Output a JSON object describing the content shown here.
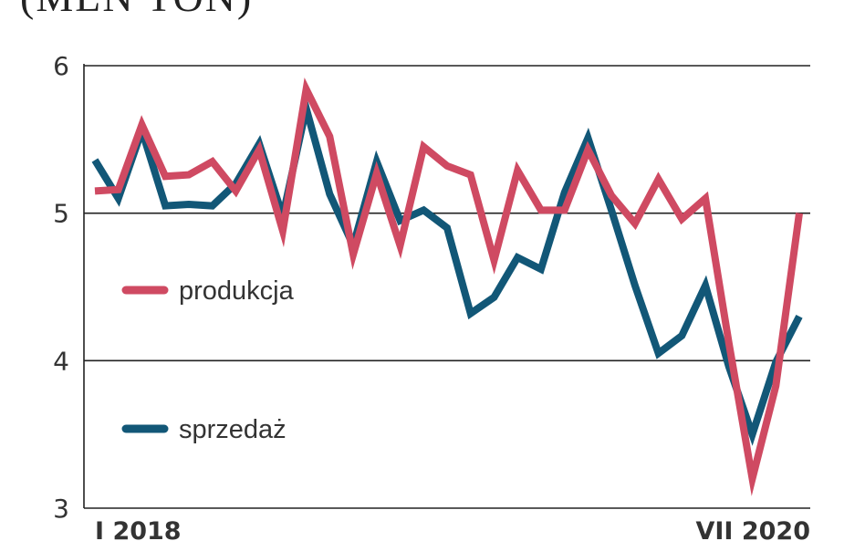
{
  "title": "(MLN TON)",
  "chart_data": {
    "type": "line",
    "title": "(MLN TON)",
    "xlabel": "",
    "ylabel": "",
    "ylim": [
      3,
      6
    ],
    "yticks": [
      3,
      4,
      5,
      6
    ],
    "x_tick_labels": [
      "I 2018",
      "VII 2020"
    ],
    "grid": "horizontal",
    "legend": "inside-left",
    "x": [
      "2018-01",
      "2018-02",
      "2018-03",
      "2018-04",
      "2018-05",
      "2018-06",
      "2018-07",
      "2018-08",
      "2018-09",
      "2018-10",
      "2018-11",
      "2018-12",
      "2019-01",
      "2019-02",
      "2019-03",
      "2019-04",
      "2019-05",
      "2019-06",
      "2019-07",
      "2019-08",
      "2019-09",
      "2019-10",
      "2019-11",
      "2019-12",
      "2020-01",
      "2020-02",
      "2020-03",
      "2020-04",
      "2020-05",
      "2020-06",
      "2020-07"
    ],
    "series": [
      {
        "name": "produkcja",
        "color": "#cf4a62",
        "values": [
          5.15,
          5.16,
          5.6,
          5.25,
          5.26,
          5.35,
          5.15,
          5.43,
          4.88,
          5.84,
          5.52,
          4.72,
          5.27,
          4.78,
          5.45,
          5.32,
          5.26,
          4.68,
          5.29,
          5.02,
          5.02,
          5.43,
          5.12,
          4.93,
          5.23,
          4.96,
          5.1,
          4.12,
          3.2,
          3.83,
          5.0
        ]
      },
      {
        "name": "sprzedaż",
        "color": "#125777",
        "values": [
          5.36,
          5.1,
          5.56,
          5.05,
          5.06,
          5.05,
          5.2,
          5.47,
          4.98,
          5.71,
          5.13,
          4.78,
          5.35,
          4.95,
          5.02,
          4.9,
          4.32,
          4.43,
          4.7,
          4.62,
          5.14,
          5.51,
          5.02,
          4.51,
          4.05,
          4.17,
          4.51,
          3.96,
          3.5,
          3.99,
          4.3
        ]
      }
    ]
  }
}
